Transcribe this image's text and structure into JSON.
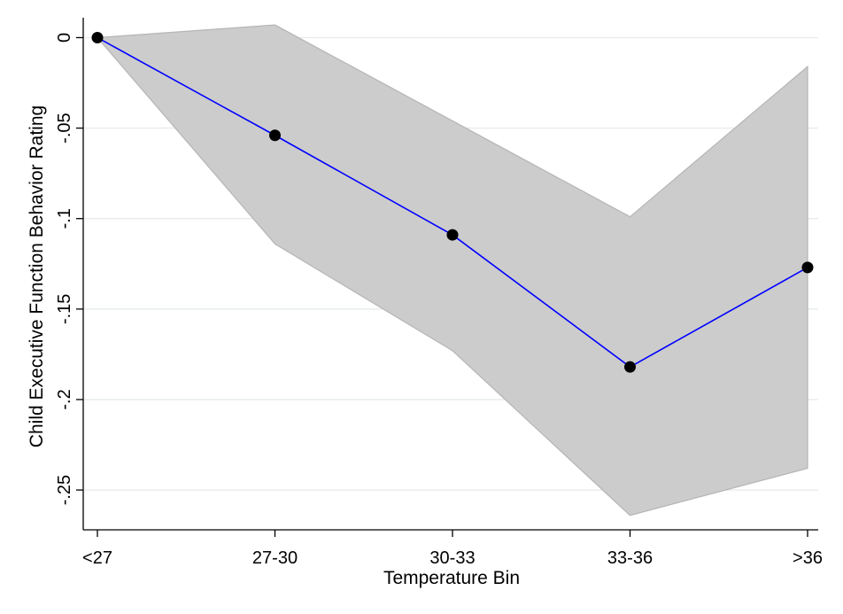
{
  "chart_data": {
    "type": "line",
    "title": "",
    "xlabel": "Temperature Bin",
    "ylabel": "Child Executive Function Behavior Rating",
    "categories": [
      "<27",
      "27-30",
      "30-33",
      "33-36",
      ">36"
    ],
    "series": [
      {
        "values": [
          0,
          -0.054,
          -0.109,
          -0.182,
          -0.127
        ],
        "ci_upper": [
          0,
          0.007,
          -0.046,
          -0.099,
          -0.016
        ],
        "ci_lower": [
          0,
          -0.114,
          -0.173,
          -0.264,
          -0.238
        ]
      }
    ],
    "yticks": [
      0,
      -0.05,
      -0.1,
      -0.15,
      -0.2,
      -0.25
    ],
    "ytick_labels": [
      "0",
      "-.05",
      "-.1",
      "-.15",
      "-.2",
      "-.25"
    ],
    "ylim": [
      -0.272,
      0.011
    ],
    "grid": true,
    "colors": {
      "line": "#0000ff",
      "marker": "#000000",
      "band": "#cccccc",
      "band_edge": "#b5b5b5",
      "grid": "#e6ebee"
    }
  }
}
